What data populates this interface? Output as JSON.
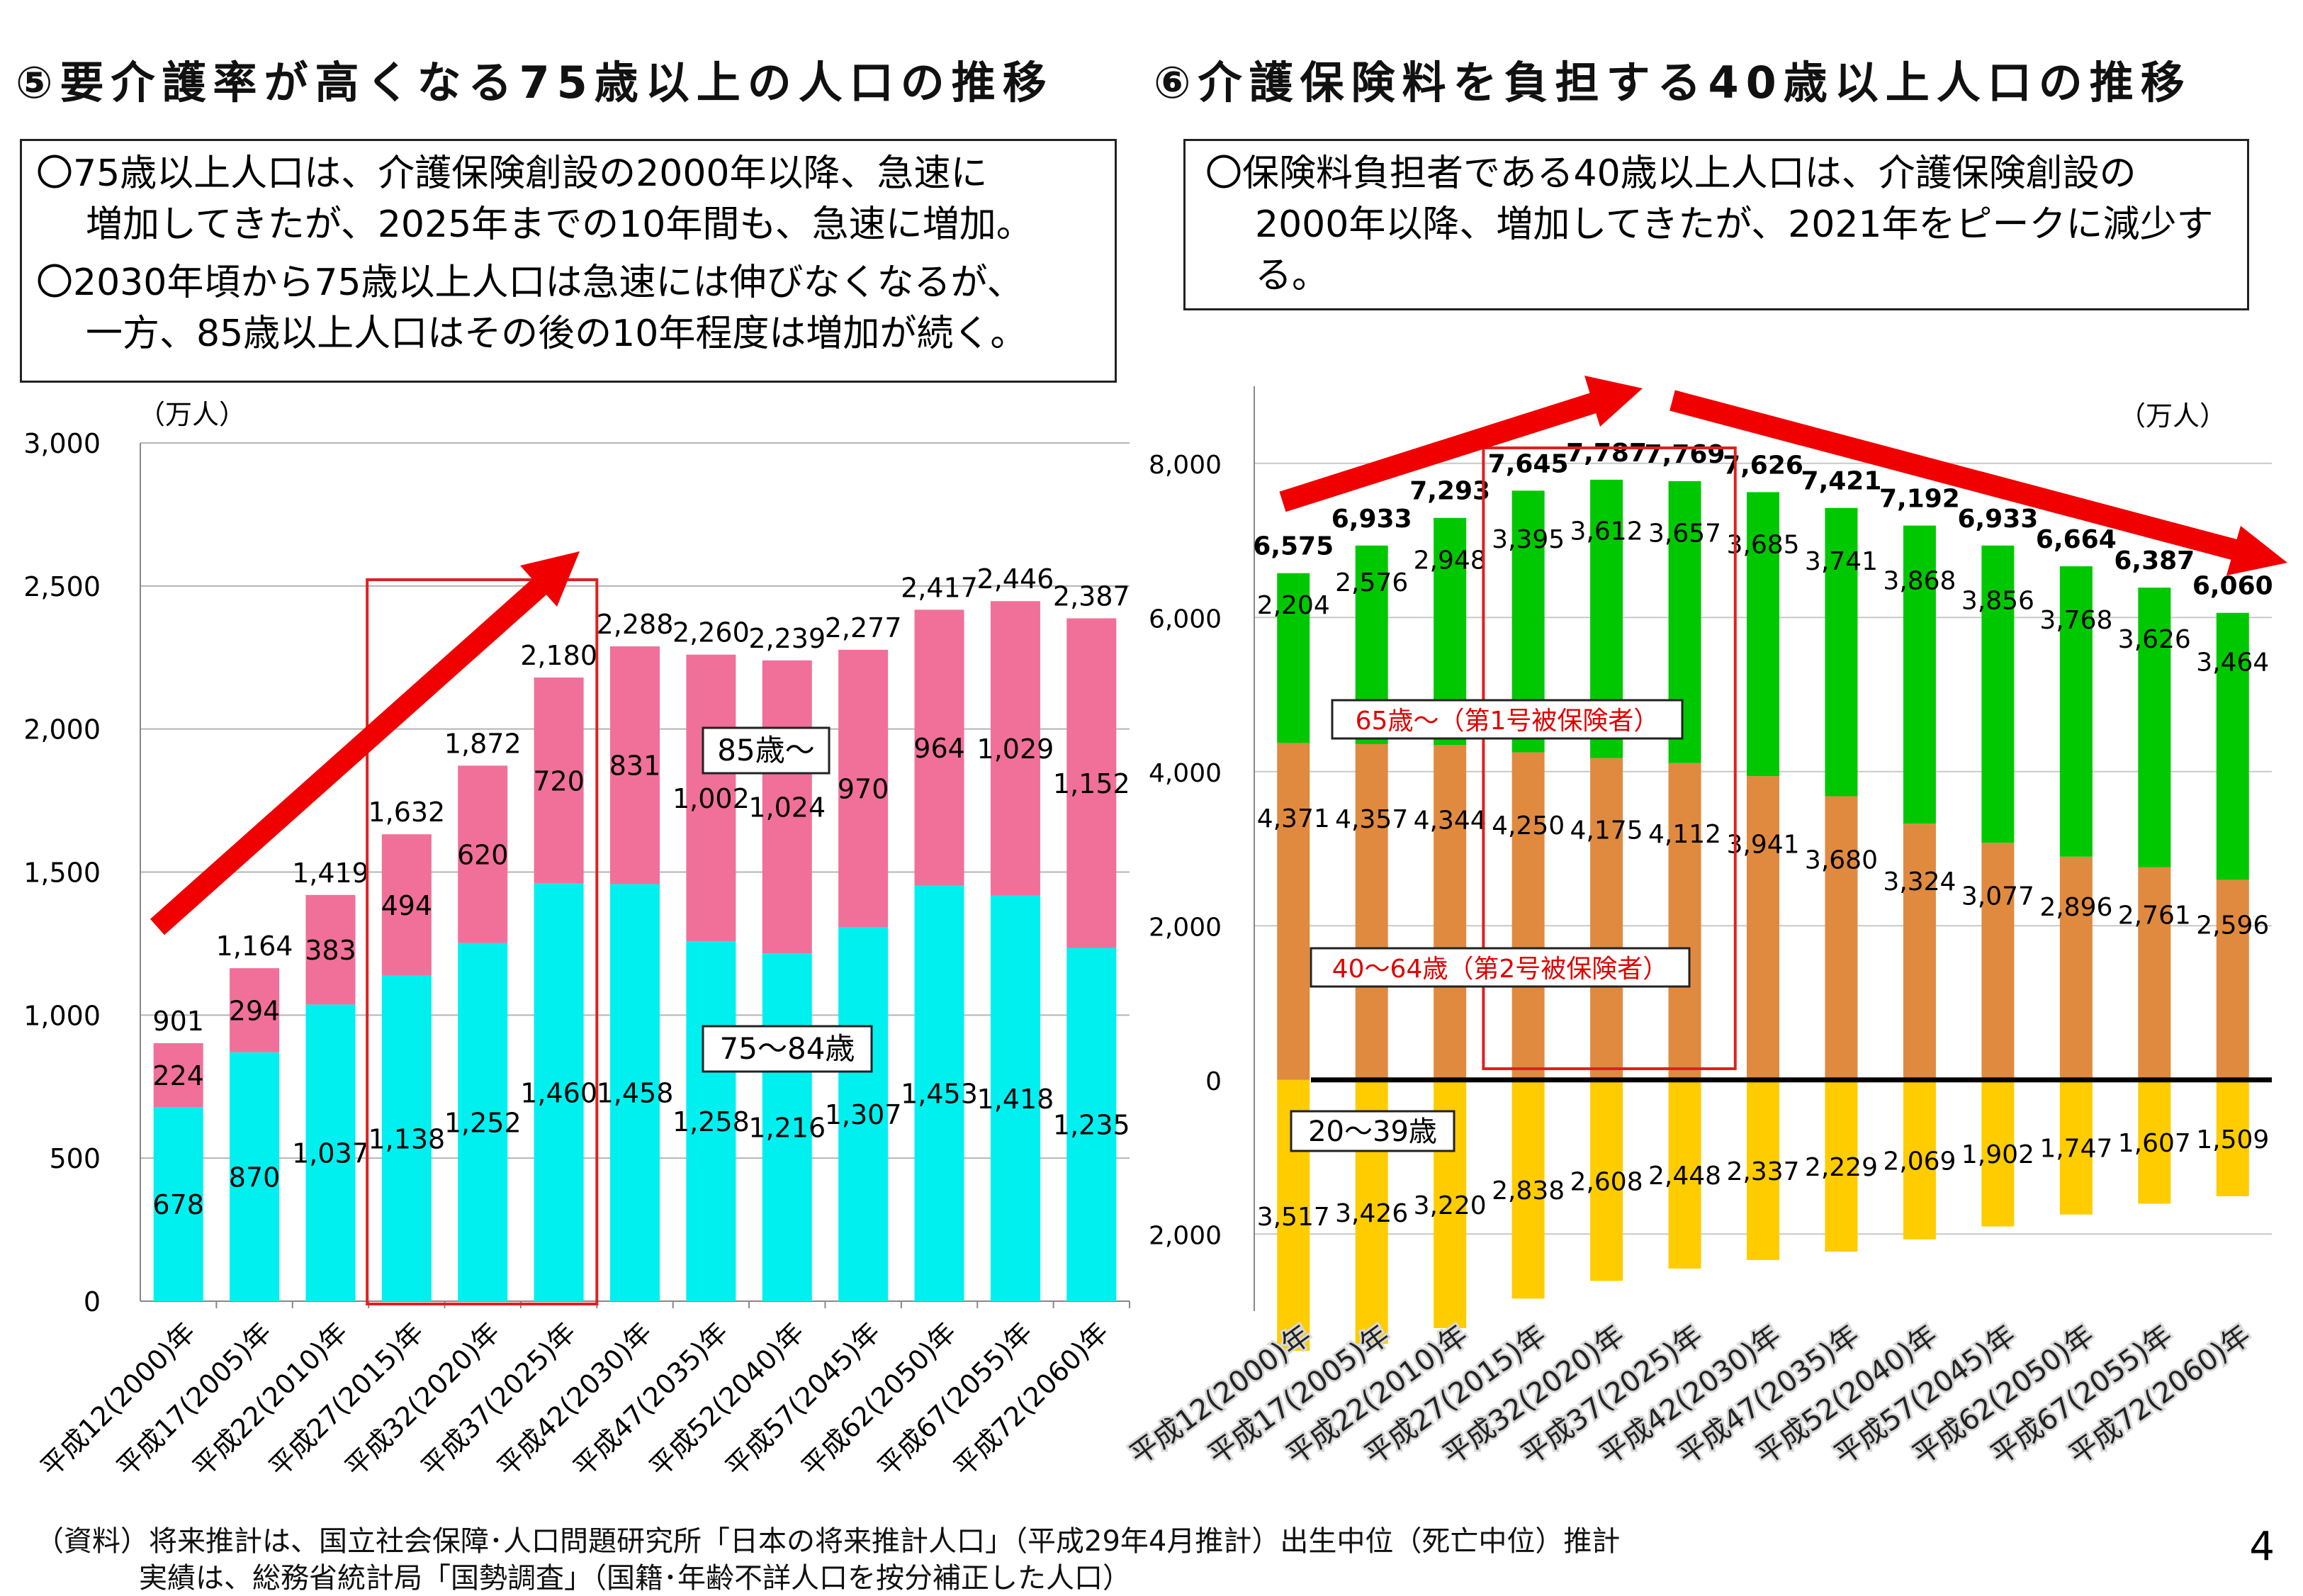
{
  "titles": {
    "left": "⑤要介護率が高くなる75歳以上の人口の推移",
    "right": "⑥介護保険料を負担する40歳以上人口の推移"
  },
  "notes": {
    "left_1a": "〇75歳以上人口は、介護保険創設の2000年以降、急速に",
    "left_1b": "増加してきたが、2025年までの10年間も、急速に増加。",
    "left_2a": "〇2030年頃から75歳以上人口は急速には伸びなくなるが、",
    "left_2b": "一方、85歳以上人口はその後の10年程度は増加が続く。",
    "right_1a": "〇保険料負担者である40歳以上人口は、介護保険創設の",
    "right_1b": "2000年以降、増加してきたが、2021年をピークに減少す",
    "right_1c": "る。"
  },
  "source": {
    "line1": "（資料）将来推計は、国立社会保障･人口問題研究所「日本の将来推計人口」（平成29年4月推計）出生中位（死亡中位）推計",
    "line2": "実績は、総務省統計局「国勢調査」（国籍･年齢不詳人口を按分補正した人口）"
  },
  "page_number": "4",
  "colors": {
    "age_75_84": "#00f0f0",
    "age_85_plus": "#f0709a",
    "age_65_plus": "#00c800",
    "age_40_64": "#e08a40",
    "age_20_39": "#ffcc00",
    "trend_arrow": "#f00000",
    "highlight_box": "#e02020"
  },
  "chart_data": [
    {
      "type": "bar",
      "stacked": true,
      "unit": "（万人）",
      "categories": [
        "平成12(2000)年",
        "平成17(2005)年",
        "平成22(2010)年",
        "平成27(2015)年",
        "平成32(2020)年",
        "平成37(2025)年",
        "平成42(2030)年",
        "平成47(2035)年",
        "平成52(2040)年",
        "平成57(2045)年",
        "平成62(2050)年",
        "平成67(2055)年",
        "平成72(2060)年"
      ],
      "series": [
        {
          "name": "75～84歳",
          "values": [
            678,
            870,
            1037,
            1138,
            1252,
            1460,
            1458,
            1258,
            1216,
            1307,
            1453,
            1418,
            1235
          ],
          "labels": [
            "678",
            "870",
            "1,037",
            "1,138",
            "1,252",
            "1,460",
            "1,458",
            "1,258",
            "1,216",
            "1,307",
            "1,453",
            "1,418",
            "1,235"
          ]
        },
        {
          "name": "85歳～",
          "values": [
            224,
            294,
            383,
            494,
            620,
            720,
            831,
            1002,
            1024,
            970,
            964,
            1029,
            1152
          ],
          "labels": [
            "224",
            "294",
            "383",
            "494",
            "620",
            "720",
            "831",
            "1,002",
            "1,024",
            "970",
            "964",
            "1,029",
            "1,152"
          ]
        }
      ],
      "totals": [
        "901",
        "1,164",
        "1,419",
        "1,632",
        "1,872",
        "2,180",
        "2,288",
        "2,260",
        "2,239",
        "2,277",
        "2,417",
        "2,446",
        "2,387"
      ],
      "ylim": [
        0,
        3000
      ],
      "yticks": [
        0,
        500,
        1000,
        1500,
        2000,
        2500,
        3000
      ],
      "ytick_labels": [
        "0",
        "500",
        "1,000",
        "1,500",
        "2,000",
        "2,500",
        "3,000"
      ],
      "highlight": "平成27(2015)年–平成37(2025)年",
      "grid": true,
      "legend": "inline"
    },
    {
      "type": "bar",
      "stacked": true,
      "unit": "（万人）",
      "categories": [
        "平成12(2000)年",
        "平成17(2005)年",
        "平成22(2010)年",
        "平成27(2015)年",
        "平成32(2020)年",
        "平成37(2025)年",
        "平成42(2030)年",
        "平成47(2035)年",
        "平成52(2040)年",
        "平成57(2045)年",
        "平成62(2050)年",
        "平成67(2055)年",
        "平成72(2060)年"
      ],
      "series": [
        {
          "name": "40～64歳（第2号被保険者）",
          "values": [
            4371,
            4357,
            4344,
            4250,
            4175,
            4112,
            3941,
            3680,
            3324,
            3077,
            2896,
            2761,
            2596
          ],
          "labels": [
            "4,371",
            "4,357",
            "4,344",
            "4,250",
            "4,175",
            "4,112",
            "3,941",
            "3,680",
            "3,324",
            "3,077",
            "2,896",
            "2,761",
            "2,596"
          ]
        },
        {
          "name": "65歳～（第1号被保険者）",
          "values": [
            2204,
            2576,
            2948,
            3395,
            3612,
            3657,
            3685,
            3741,
            3868,
            3856,
            3768,
            3626,
            3464
          ],
          "labels": [
            "2,204",
            "2,576",
            "2,948",
            "3,395",
            "3,612",
            "3,657",
            "3,685",
            "3,741",
            "3,868",
            "3,856",
            "3,768",
            "3,626",
            "3,464"
          ]
        },
        {
          "name": "20～39歳",
          "values": [
            -3517,
            -3426,
            -3220,
            -2838,
            -2608,
            -2448,
            -2337,
            -2229,
            -2069,
            -1902,
            -1747,
            -1607,
            -1509
          ],
          "labels": [
            "3,517",
            "3,426",
            "3,220",
            "2,838",
            "2,608",
            "2,448",
            "2,337",
            "2,229",
            "2,069",
            "1,902",
            "1,747",
            "1,607",
            "1,509"
          ]
        }
      ],
      "totals": [
        "6,575",
        "6,933",
        "7,293",
        "7,645",
        "7,787",
        "7,769",
        "7,626",
        "7,421",
        "7,192",
        "6,933",
        "6,664",
        "6,387",
        "6,060"
      ],
      "ylim": [
        -3000,
        9000
      ],
      "yticks": [
        -2000,
        0,
        2000,
        4000,
        6000,
        8000
      ],
      "ytick_labels": [
        "2,000",
        "0",
        "2,000",
        "4,000",
        "6,000",
        "8,000"
      ],
      "highlight": "平成27(2015)年–平成37(2025)年",
      "grid": true,
      "legend": "inline"
    }
  ]
}
